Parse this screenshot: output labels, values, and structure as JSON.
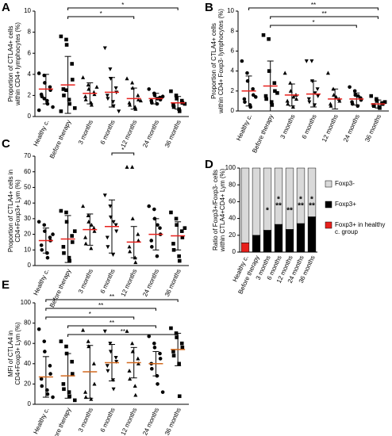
{
  "chart_data": [
    {
      "type": "dotplot",
      "label": "A",
      "ylabel": [
        "Proportion of CTLA4+ cells",
        "within CD4+ lymphocytes (%)"
      ],
      "categories": [
        "Healthy c.",
        "Before therapy",
        "3 months",
        "6 months",
        "12 months",
        "24 months",
        "36 months"
      ],
      "markers": [
        "circle",
        "square",
        "triangle",
        "triangle-down",
        "triangle",
        "circle",
        "square"
      ],
      "mean_color": "#e8201c",
      "ylim": [
        0,
        10
      ],
      "yticks": [
        0,
        2,
        4,
        6,
        8,
        10
      ],
      "groups": [
        {
          "mean": 2.6,
          "sd": 1.4,
          "points": [
            4.1,
            3.9,
            3.2,
            2.8,
            2.5,
            2.1,
            1.9,
            1.5,
            1.2,
            0.9,
            0.6,
            1.7
          ]
        },
        {
          "mean": 3.0,
          "sd": 2.7,
          "points": [
            7.6,
            7.3,
            6.8,
            5.0,
            3.5,
            2.6,
            2.0,
            1.6,
            1.2,
            0.8,
            0.5,
            2.5
          ]
        },
        {
          "mean": 2.2,
          "sd": 1.0,
          "points": [
            3.7,
            3.0,
            2.6,
            2.3,
            2.1,
            1.9,
            1.6,
            1.3,
            1.1,
            2.8
          ]
        },
        {
          "mean": 2.3,
          "sd": 1.4,
          "points": [
            6.5,
            4.5,
            3.6,
            2.7,
            2.3,
            2.0,
            1.7,
            1.4,
            1.0,
            0.5
          ]
        },
        {
          "mean": 1.7,
          "sd": 1.0,
          "points": [
            3.6,
            3.2,
            2.7,
            2.0,
            1.6,
            1.3,
            1.1,
            0.9,
            0.7,
            1.5
          ]
        },
        {
          "mean": 1.7,
          "sd": 0.5,
          "points": [
            2.6,
            2.2,
            2.0,
            1.8,
            1.6,
            1.5,
            1.3,
            1.2,
            1.7,
            1.9
          ]
        },
        {
          "mean": 1.3,
          "sd": 0.6,
          "points": [
            2.4,
            2.0,
            1.7,
            1.5,
            1.3,
            1.1,
            0.9,
            0.7,
            0.5,
            1.2
          ]
        }
      ],
      "comparisons": [
        {
          "from": "Before therapy",
          "to": "36 months",
          "label": "*"
        },
        {
          "from": "Before therapy",
          "to": "12 months",
          "label": "*"
        }
      ]
    },
    {
      "type": "dotplot",
      "label": "B",
      "ylabel": [
        "Proportion of CTLA4+ cells",
        "within CD4+ Foxp3- lymphocytes (%)"
      ],
      "categories": [
        "Healthy c.",
        "Before therapy",
        "3 months",
        "6 months",
        "12 months",
        "24 months",
        "36 months"
      ],
      "markers": [
        "circle",
        "square",
        "triangle",
        "triangle-down",
        "triangle",
        "circle",
        "square"
      ],
      "mean_color": "#e8201c",
      "ylim": [
        0,
        10
      ],
      "yticks": [
        0,
        2,
        4,
        6,
        8,
        10
      ],
      "groups": [
        {
          "mean": 2.0,
          "sd": 1.5,
          "points": [
            5.0,
            3.8,
            3.0,
            2.2,
            1.6,
            1.2,
            0.9,
            0.6,
            0.4,
            1.4
          ]
        },
        {
          "mean": 2.5,
          "sd": 2.5,
          "points": [
            7.6,
            7.2,
            4.0,
            2.8,
            2.0,
            1.5,
            1.2,
            0.9,
            0.6,
            1.8
          ]
        },
        {
          "mean": 1.6,
          "sd": 1.1,
          "points": [
            3.8,
            2.8,
            2.0,
            1.6,
            1.2,
            1.0,
            0.7,
            0.4,
            1.4
          ]
        },
        {
          "mean": 1.7,
          "sd": 1.3,
          "points": [
            5.0,
            5.0,
            3.0,
            2.2,
            1.5,
            1.2,
            0.9,
            0.6,
            1.8
          ]
        },
        {
          "mean": 1.2,
          "sd": 1.0,
          "points": [
            3.8,
            2.2,
            1.6,
            1.2,
            1.0,
            0.7,
            0.5,
            1.4
          ]
        },
        {
          "mean": 1.2,
          "sd": 0.6,
          "points": [
            2.4,
            2.0,
            1.6,
            1.3,
            1.1,
            0.9,
            0.7,
            0.5,
            1.5
          ]
        },
        {
          "mean": 0.7,
          "sd": 0.4,
          "points": [
            1.5,
            1.2,
            1.0,
            0.8,
            0.7,
            0.6,
            0.5,
            0.4,
            0.3,
            0.9
          ]
        }
      ],
      "comparisons": [
        {
          "from": "Healthy c.",
          "to": "36 months",
          "label": "**"
        },
        {
          "from": "Before therapy",
          "to": "36 months",
          "label": "**"
        },
        {
          "from": "Before therapy",
          "to": "24 months",
          "label": "*"
        }
      ]
    },
    {
      "type": "dotplot",
      "label": "C",
      "ylabel": [
        "Proportion of CTLA4+ cells in",
        "CD4+Foxp3+ Lym (%)"
      ],
      "categories": [
        "Healthy c.",
        "Before therapy",
        "3 months",
        "6 months",
        "12 months",
        "24 months",
        "36 months"
      ],
      "markers": [
        "circle",
        "square",
        "triangle",
        "triangle-down",
        "triangle",
        "circle",
        "square"
      ],
      "mean_color": "#e8201c",
      "ylim": [
        0,
        70
      ],
      "yticks": [
        0,
        10,
        20,
        30,
        40,
        50,
        60,
        70
      ],
      "groups": [
        {
          "mean": 16,
          "sd": 8,
          "points": [
            28,
            26,
            22,
            18,
            16,
            13,
            10,
            8,
            5,
            20
          ]
        },
        {
          "mean": 17,
          "sd": 15,
          "points": [
            35,
            34,
            28,
            19,
            15,
            12,
            8,
            5,
            3,
            22
          ]
        },
        {
          "mean": 23,
          "sd": 10,
          "points": [
            38,
            32,
            28,
            24,
            22,
            18,
            14,
            11,
            26
          ]
        },
        {
          "mean": 25,
          "sd": 17,
          "points": [
            45,
            38,
            31,
            26,
            22,
            18,
            12,
            7,
            28
          ]
        },
        {
          "mean": 15,
          "sd": 10,
          "points": [
            63,
            63,
            30,
            20,
            16,
            12,
            9,
            5,
            2
          ]
        },
        {
          "mean": 20,
          "sd": 10,
          "points": [
            38,
            36,
            30,
            24,
            20,
            16,
            12,
            6,
            26
          ]
        },
        {
          "mean": 19,
          "sd": 9,
          "points": [
            34,
            30,
            26,
            22,
            18,
            14,
            10,
            6,
            3,
            24
          ]
        }
      ],
      "comparisons": [
        {
          "from": "6 months",
          "to": "12 months",
          "label": "*"
        }
      ]
    },
    {
      "type": "stacked_bar",
      "label": "D",
      "ylabel": [
        "Ratio of Foxp3+/Foxp3- cells",
        "within CTLA4+CD4+ Lym (%)"
      ],
      "categories": [
        "Healthy c.",
        "Before therapy",
        "3 months",
        "6 months",
        "12 months",
        "24 months",
        "36 months"
      ],
      "ylim": [
        0,
        100
      ],
      "yticks": [
        0,
        20,
        40,
        60,
        80,
        100
      ],
      "series": [
        {
          "name": "Foxp3-",
          "color": "#d9d9d9",
          "values": [
            89,
            80,
            74,
            67,
            73,
            66,
            58
          ]
        },
        {
          "name": "Foxp3+",
          "color": "#000000",
          "values": [
            null,
            20,
            26,
            33,
            27,
            34,
            42
          ],
          "errors": [
            null,
            17,
            20,
            19,
            13,
            17,
            24
          ]
        },
        {
          "name": "Foxp3+ in healthy c. group",
          "color": "#e8201c",
          "values": [
            11,
            null,
            null,
            null,
            null,
            null,
            null
          ],
          "errors": [
            10,
            null,
            null,
            null,
            null,
            null,
            null
          ]
        }
      ],
      "annotations": [
        {
          "category": "3 months",
          "labels": [
            {
              "text": "*",
              "color": "#e8201c"
            }
          ]
        },
        {
          "category": "6 months",
          "labels": [
            {
              "text": "*",
              "color": "#000000"
            },
            {
              "text": "**",
              "color": "#e8201c"
            }
          ]
        },
        {
          "category": "12 months",
          "labels": [
            {
              "text": "**",
              "color": "#e8201c"
            }
          ]
        },
        {
          "category": "24 months",
          "labels": [
            {
              "text": "*",
              "color": "#000000"
            },
            {
              "text": "**",
              "color": "#e8201c"
            }
          ]
        },
        {
          "category": "36 months",
          "labels": [
            {
              "text": "*",
              "color": "#000000"
            },
            {
              "text": "**",
              "color": "#e8201c"
            }
          ]
        }
      ]
    },
    {
      "type": "dotplot",
      "label": "E",
      "ylabel": [
        "MFI of CTLA4 in",
        "CD4+Foxp3+ Lym (%)"
      ],
      "categories": [
        "Healthy c.",
        "Before therapy",
        "3 months",
        "6 months",
        "12 months",
        "24 months",
        "36 months"
      ],
      "markers": [
        "circle",
        "square",
        "triangle",
        "triangle-down",
        "triangle",
        "circle",
        "square"
      ],
      "mean_color": "#d2691e",
      "ylim": [
        0,
        100
      ],
      "yticks": [
        0,
        20,
        40,
        60,
        80,
        100
      ],
      "groups": [
        {
          "mean": 27,
          "sd": 20,
          "points": [
            74,
            62,
            52,
            38,
            30,
            25,
            18,
            14,
            10,
            7
          ]
        },
        {
          "mean": 28,
          "sd": 22,
          "points": [
            62,
            57,
            50,
            42,
            30,
            20,
            15,
            12,
            8,
            4
          ]
        },
        {
          "mean": 32,
          "sd": 26,
          "points": [
            73,
            62,
            57,
            40,
            20,
            12,
            7,
            5
          ]
        },
        {
          "mean": 41,
          "sd": 18,
          "points": [
            72,
            60,
            52,
            46,
            42,
            38,
            33,
            24,
            15
          ]
        },
        {
          "mean": 41,
          "sd": 15,
          "points": [
            72,
            60,
            52,
            45,
            40,
            33,
            25,
            18,
            9
          ]
        },
        {
          "mean": 40,
          "sd": 12,
          "points": [
            67,
            60,
            56,
            50,
            45,
            40,
            35,
            28,
            20,
            12
          ]
        },
        {
          "mean": 54,
          "sd": 16,
          "points": [
            75,
            70,
            66,
            60,
            56,
            52,
            48,
            40,
            8
          ]
        }
      ],
      "comparisons": [
        {
          "from": "Healthy c.",
          "to": "36 months",
          "label": "**"
        },
        {
          "from": "Healthy c.",
          "to": "24 months",
          "label": "**"
        },
        {
          "from": "Healthy c.",
          "to": "12 months",
          "label": "*"
        },
        {
          "from": "Before therapy",
          "to": "24 months",
          "label": "**"
        },
        {
          "from": "Before therapy",
          "to": "36 months",
          "label": "**"
        }
      ]
    }
  ]
}
